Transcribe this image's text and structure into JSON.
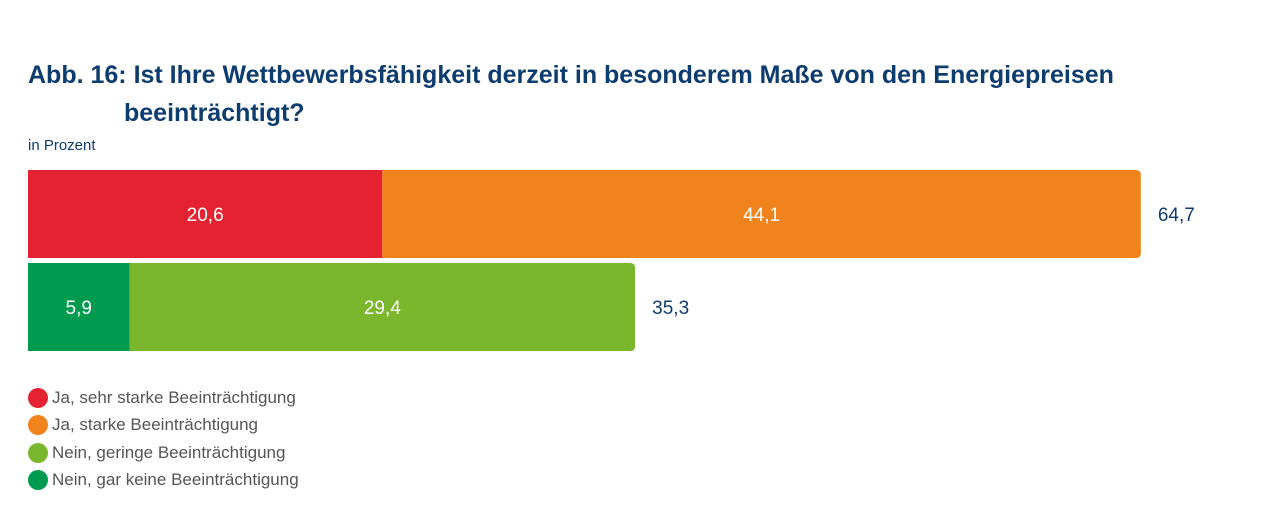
{
  "title_line1": "Abb. 16: Ist Ihre Wettbewerbsfähigkeit derzeit in besonderem Maße von den Energiepreisen",
  "title_line2": "beeinträchtigt?",
  "subtitle": "in Prozent",
  "chart_data": {
    "type": "bar",
    "orientation": "horizontal",
    "stacked": true,
    "title": "Abb. 16: Ist Ihre Wettbewerbsfähigkeit derzeit in besonderem Maße von den Energiepreisen beeinträchtigt?",
    "subtitle": "in Prozent",
    "xlim": [
      0,
      100
    ],
    "grid": false,
    "legend_position": "bottom-left",
    "bars": [
      {
        "segments": [
          {
            "series": "Ja, sehr starke Beeinträchtigung",
            "value": 20.6,
            "label": "20,6"
          },
          {
            "series": "Ja, starke Beeinträchtigung",
            "value": 44.1,
            "label": "44,1"
          }
        ],
        "total": 64.7,
        "total_label": "64,7"
      },
      {
        "segments": [
          {
            "series": "Nein, gar keine Beeinträchtigung",
            "value": 5.9,
            "label": "5,9"
          },
          {
            "series": "Nein, geringe Beeinträchtigung",
            "value": 29.4,
            "label": "29,4"
          }
        ],
        "total": 35.3,
        "total_label": "35,3"
      }
    ],
    "legend": [
      {
        "name": "Ja, sehr starke Beeinträchtigung",
        "color": "#e52231"
      },
      {
        "name": "Ja, starke Beeinträchtigung",
        "color": "#f0831c"
      },
      {
        "name": "Nein, geringe Beeinträchtigung",
        "color": "#7ab72c"
      },
      {
        "name": "Nein, gar keine Beeinträchtigung",
        "color": "#009b4e"
      }
    ],
    "colors": {
      "label_inside": "#ffffff",
      "label_total": "#0d3c6e"
    }
  }
}
